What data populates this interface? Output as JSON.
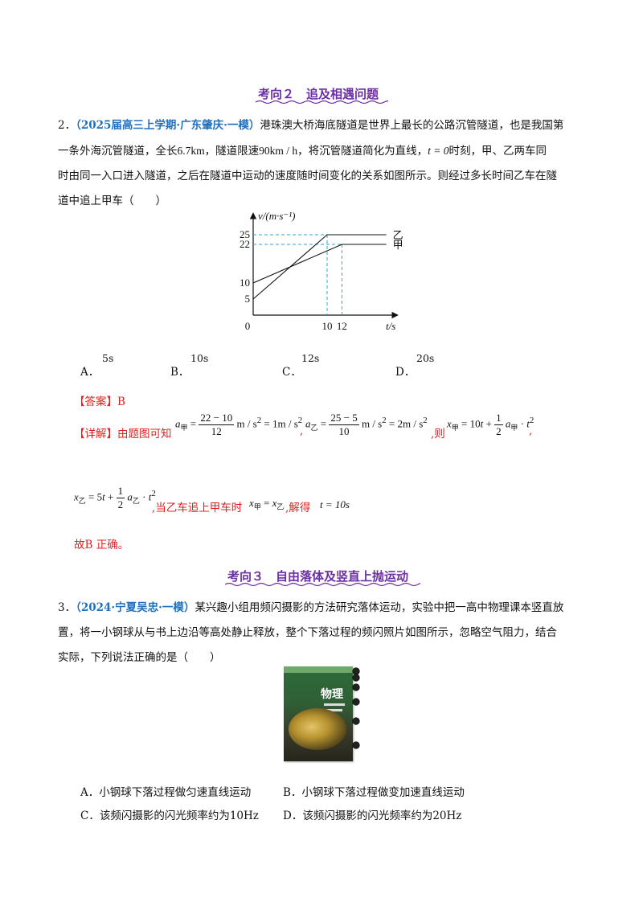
{
  "section2": {
    "title": "考向２　追及相遇问题"
  },
  "q2": {
    "number": "2．",
    "source": "（2025届高三上学期·广东肇庆·一模）",
    "line1_rest": "港珠澳大桥海底隧道是世界上最长的公路沉管隧道，也是我国第",
    "line2_a": "一条外海沉管隧道，全长",
    "length": "6.7km",
    "line2_b": "，隧道限速",
    "speed_limit": "90km / h",
    "line2_c": "，将沉管隧道简化为直线，",
    "t0": "t = 0",
    "line2_d": "时刻，甲、乙两车同",
    "line3": "时由同一入口进入隧道，之后在隧道中运动的速度随时间变化的关系如图所示。则经过多长时间乙车在隧",
    "line4": "道中追上甲车（　　）",
    "options": [
      {
        "label": "A．",
        "value": "5s"
      },
      {
        "label": "B．",
        "value": "10s"
      },
      {
        "label": "C．",
        "value": "12s"
      },
      {
        "label": "D．",
        "value": "20s"
      }
    ],
    "answer": "【答案】B",
    "detail_label": "【详解】由题图可知",
    "detail_then": ",则",
    "when_caught": ",当乙车追上甲车时",
    "solve": ",解得",
    "result": "t = 10s",
    "conclusion": "故B 正确。"
  },
  "chart_data": {
    "type": "line",
    "ylabel": "v/(m·s⁻¹)",
    "xlabel": "t/s",
    "origin_label": "0",
    "y_ticks": [
      "5",
      "10",
      "22",
      "25"
    ],
    "x_ticks": [
      "10",
      "12"
    ],
    "series": [
      {
        "name": "乙",
        "points": [
          [
            0,
            5
          ],
          [
            10,
            25
          ],
          [
            18,
            25
          ]
        ]
      },
      {
        "name": "甲",
        "points": [
          [
            0,
            10
          ],
          [
            12,
            22
          ],
          [
            18,
            22
          ]
        ]
      }
    ]
  },
  "section3": {
    "title": "考向３　自由落体及竖直上抛运动"
  },
  "q3": {
    "number": "3．",
    "source": "（2024·宁夏吴忠·一模）",
    "line1_rest": "某兴趣小组用频闪摄影的方法研究落体运动，实验中把一高中物理课本竖直放",
    "line2": "置，将一小钢球从与书上边沿等高处静止释放，整个下落过程的频闪照片如图所示，忽略空气阻力，结合",
    "line3": "实际，下列说法正确的是（　　）",
    "book_title": "物理",
    "options": [
      {
        "label": "A．",
        "text": "小钢球下落过程做匀速直线运动"
      },
      {
        "label": "B．",
        "text": "小钢球下落过程做变加速直线运动"
      },
      {
        "label": "C．",
        "text": "该频闪摄影的闪光频率约为10Hz"
      },
      {
        "label": "D．",
        "text": "该频闪摄影的闪光频率约为20Hz"
      }
    ]
  },
  "colors": {
    "section_title": "#6b2fa3",
    "source": "#1f6fbf",
    "answer": "#e02020",
    "dashed": "#2aa7d6"
  }
}
